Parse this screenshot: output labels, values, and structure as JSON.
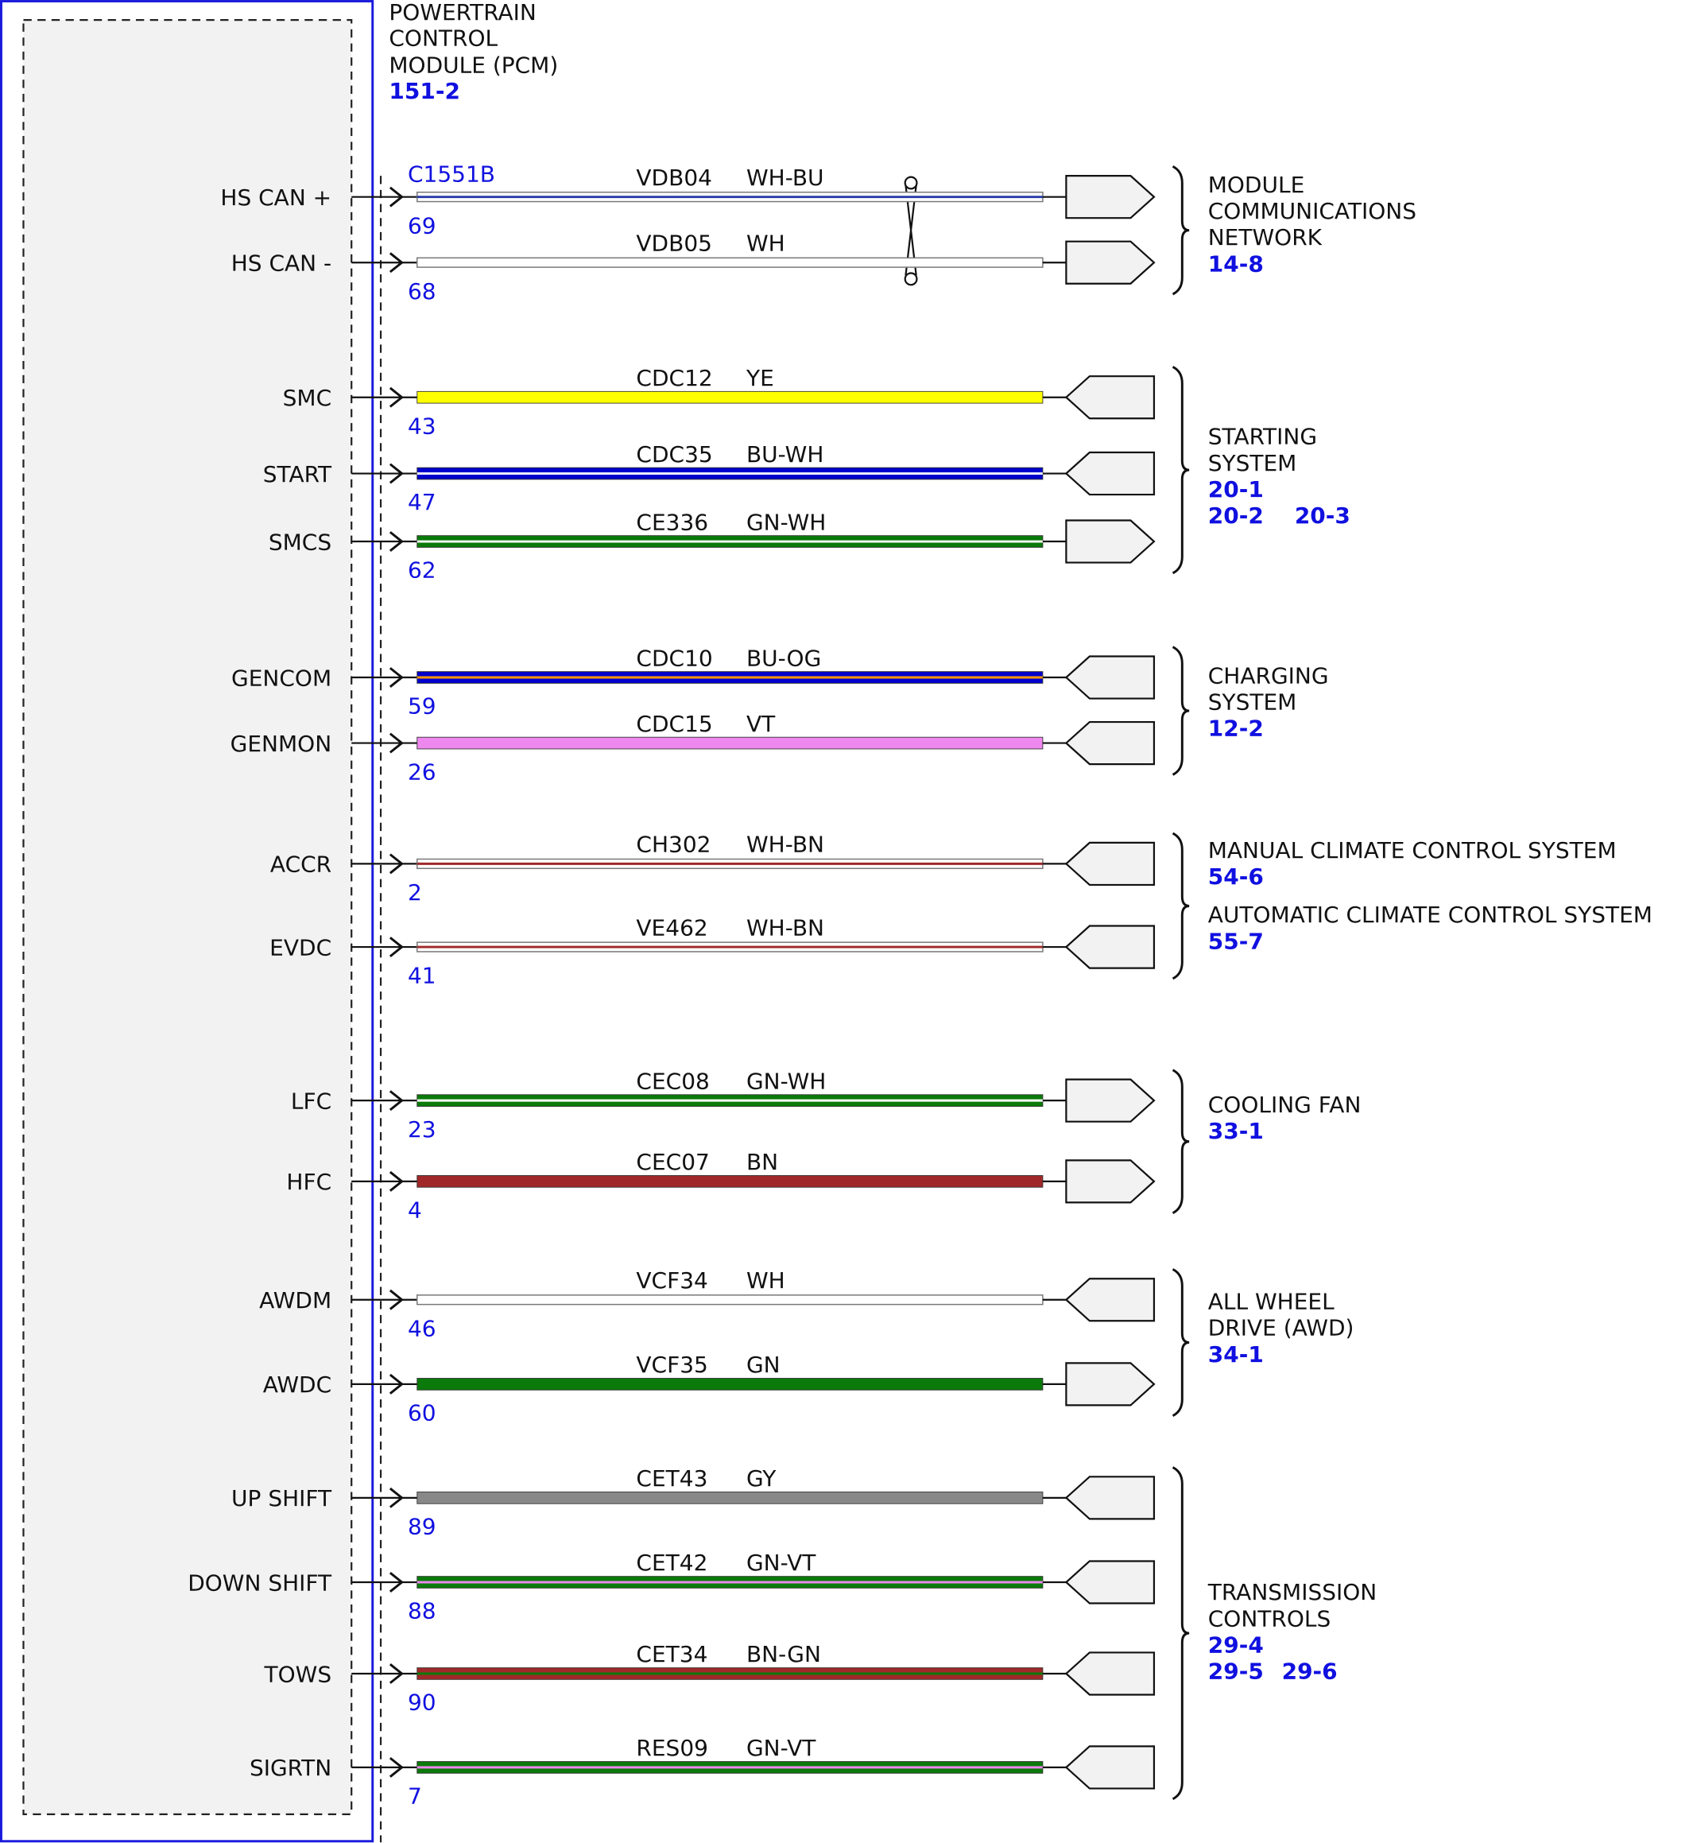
{
  "module": {
    "title": [
      "POWERTRAIN",
      "CONTROL",
      "MODULE (PCM)"
    ],
    "ref": "151-2"
  },
  "connector": "C1551B",
  "wires": [
    {
      "pin_name": "HS CAN +",
      "pin": "69",
      "circuit": "VDB04",
      "color_code": "WH-BU",
      "color": "#ffffff",
      "stripe": "#2a3aa8"
    },
    {
      "pin_name": "HS CAN -",
      "pin": "68",
      "circuit": "VDB05",
      "color_code": "WH",
      "color": "#ffffff",
      "stripe": null
    },
    {
      "pin_name": "SMC",
      "pin": "43",
      "circuit": "CDC12",
      "color_code": "YE",
      "color": "#ffff00",
      "stripe": null
    },
    {
      "pin_name": "START",
      "pin": "47",
      "circuit": "CDC35",
      "color_code": "BU-WH",
      "color": "#0000cc",
      "stripe": "#ffffff"
    },
    {
      "pin_name": "SMCS",
      "pin": "62",
      "circuit": "CE336",
      "color_code": "GN-WH",
      "color": "#0a7a0a",
      "stripe": "#ffffff"
    },
    {
      "pin_name": "GENCOM",
      "pin": "59",
      "circuit": "CDC10",
      "color_code": "BU-OG",
      "color": "#0000cc",
      "stripe": "#ff9900"
    },
    {
      "pin_name": "GENMON",
      "pin": "26",
      "circuit": "CDC15",
      "color_code": "VT",
      "color": "#ee88ee",
      "stripe": null
    },
    {
      "pin_name": "ACCR",
      "pin": "2",
      "circuit": "CH302",
      "color_code": "WH-BN",
      "color": "#ffffff",
      "stripe": "#a02828"
    },
    {
      "pin_name": "EVDC",
      "pin": "41",
      "circuit": "VE462",
      "color_code": "WH-BN",
      "color": "#ffffff",
      "stripe": "#a02828"
    },
    {
      "pin_name": "LFC",
      "pin": "23",
      "circuit": "CEC08",
      "color_code": "GN-WH",
      "color": "#0a7a0a",
      "stripe": "#ffffff"
    },
    {
      "pin_name": "HFC",
      "pin": "4",
      "circuit": "CEC07",
      "color_code": "BN",
      "color": "#a02828",
      "stripe": null
    },
    {
      "pin_name": "AWDM",
      "pin": "46",
      "circuit": "VCF34",
      "color_code": "WH",
      "color": "#ffffff",
      "stripe": null
    },
    {
      "pin_name": "AWDC",
      "pin": "60",
      "circuit": "VCF35",
      "color_code": "GN",
      "color": "#0a7a0a",
      "stripe": null
    },
    {
      "pin_name": "UP SHIFT",
      "pin": "89",
      "circuit": "CET43",
      "color_code": "GY",
      "color": "#888888",
      "stripe": null
    },
    {
      "pin_name": "DOWN SHIFT",
      "pin": "88",
      "circuit": "CET42",
      "color_code": "GN-VT",
      "color": "#0a7a0a",
      "stripe": "#ee88ee"
    },
    {
      "pin_name": "TOWS",
      "pin": "90",
      "circuit": "CET34",
      "color_code": "BN-GN",
      "color": "#a02828",
      "stripe": "#0a7a0a"
    },
    {
      "pin_name": "SIGRTN",
      "pin": "7",
      "circuit": "RES09",
      "color_code": "GN-VT",
      "color": "#0a7a0a",
      "stripe": "#ee88ee"
    }
  ],
  "groups": [
    {
      "entries": [
        {
          "label": [
            "MODULE",
            "COMMUNICATIONS",
            "NETWORK"
          ],
          "refs": [
            [
              "14-8"
            ]
          ]
        }
      ]
    },
    {
      "entries": [
        {
          "label": [
            "STARTING",
            "SYSTEM"
          ],
          "refs": [
            [
              "20-1"
            ],
            [
              "20-2",
              "20-3"
            ]
          ]
        }
      ]
    },
    {
      "entries": [
        {
          "label": [
            "CHARGING",
            "SYSTEM"
          ],
          "refs": [
            [
              "12-2"
            ]
          ]
        }
      ]
    },
    {
      "entries": [
        {
          "label": [
            "MANUAL CLIMATE CONTROL SYSTEM"
          ],
          "refs": [
            [
              "54-6"
            ]
          ]
        },
        {
          "label": [
            "AUTOMATIC CLIMATE CONTROL SYSTEM"
          ],
          "refs": [
            [
              "55-7"
            ]
          ]
        }
      ]
    },
    {
      "entries": [
        {
          "label": [
            "COOLING FAN"
          ],
          "refs": [
            [
              "33-1"
            ]
          ]
        }
      ]
    },
    {
      "entries": [
        {
          "label": [
            "ALL WHEEL",
            "DRIVE (AWD)"
          ],
          "refs": [
            [
              "34-1"
            ]
          ]
        }
      ]
    },
    {
      "entries": [
        {
          "label": [
            "TRANSMISSION",
            "CONTROLS"
          ],
          "refs": [
            [
              "29-4"
            ],
            [
              "29-5",
              "29-6"
            ]
          ]
        }
      ]
    }
  ]
}
